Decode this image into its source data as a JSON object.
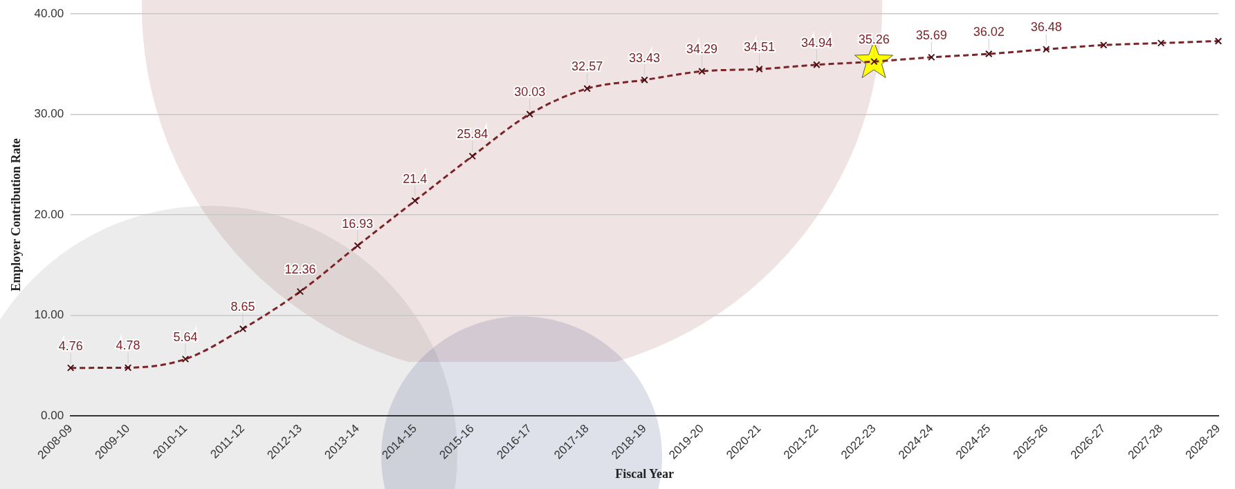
{
  "chart_data": {
    "type": "line",
    "xlabel": "Fiscal Year",
    "ylabel": "Employer Contribution Rate",
    "categories": [
      "2008-09",
      "2009-10",
      "2010-11",
      "2011-12",
      "2012-13",
      "2013-14",
      "2014-15",
      "2015-16",
      "2016-17",
      "2017-18",
      "2018-19",
      "2019-20",
      "2020-21",
      "2021-22",
      "2022-23",
      "2024-24",
      "2024-25",
      "2025-26",
      "2026-27",
      "2027-28",
      "2028-29"
    ],
    "series": [
      {
        "color": "#7b2328",
        "values": [
          4.76,
          4.78,
          5.64,
          8.65,
          12.36,
          16.93,
          21.4,
          25.84,
          30.03,
          32.57,
          33.43,
          34.29,
          34.51,
          34.94,
          35.26,
          35.69,
          36.02,
          36.48,
          36.9,
          37.1,
          37.3
        ],
        "value_labels": [
          "4.76",
          "4.78",
          "5.64",
          "8.65",
          "12.36",
          "16.93",
          "21.4",
          "25.84",
          "30.03",
          "32.57",
          "33.43",
          "34.29",
          "34.51",
          "34.94",
          "35.26",
          "35.69",
          "36.02",
          "36.48",
          null,
          null,
          null
        ]
      }
    ],
    "ylim": [
      0,
      40
    ],
    "yticks": [
      {
        "value": 0,
        "label": "0.00"
      },
      {
        "value": 10,
        "label": "10.00"
      },
      {
        "value": 20,
        "label": "20.00"
      },
      {
        "value": 30,
        "label": "30.00"
      },
      {
        "value": 40,
        "label": "40.00"
      }
    ],
    "grid": "y",
    "legend": false,
    "marker": "cross",
    "line_style": "dashed"
  }
}
